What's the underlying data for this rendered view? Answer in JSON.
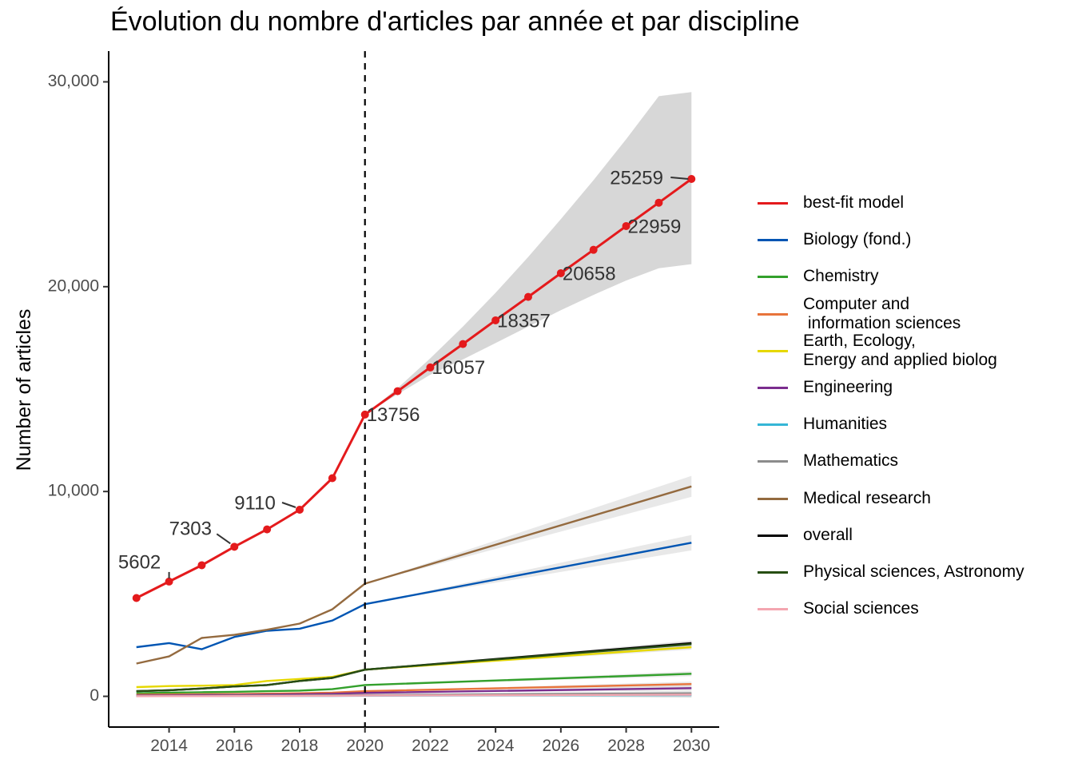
{
  "chart_data": {
    "type": "line",
    "title": "Évolution du nombre d'articles par année et par discipline",
    "xlabel": "",
    "ylabel": "Number of articles",
    "xlim": [
      2012.15,
      2030.85
    ],
    "ylim": [
      -1500,
      31500
    ],
    "x_ticks": [
      2014,
      2016,
      2018,
      2020,
      2022,
      2024,
      2026,
      2028,
      2030
    ],
    "y_ticks": [
      0,
      10000,
      20000,
      30000
    ],
    "y_tick_labels": [
      "0",
      "10,000",
      "20,000",
      "30,000"
    ],
    "vline_x": 2020,
    "grid": false,
    "legend_position": "right",
    "legend_entries": [
      "best-fit model",
      "Biology (fond.)",
      "Chemistry",
      "Computer and\n information sciences",
      "Earth, Ecology,\nEnergy and applied biolog",
      "Engineering",
      "Humanities",
      "Mathematics",
      "Medical research",
      "overall",
      "Physical sciences, Astronomy",
      "Social sciences"
    ],
    "series": [
      {
        "name": "best-fit model",
        "color": "#e41a1c",
        "markers": true,
        "x": [
          2013,
          2014,
          2015,
          2016,
          2017,
          2018,
          2019,
          2020,
          2021,
          2022,
          2023,
          2024,
          2025,
          2026,
          2027,
          2028,
          2029,
          2030
        ],
        "y": [
          4800,
          5602,
          6400,
          7303,
          8150,
          9110,
          10650,
          13756,
          14900,
          16057,
          17200,
          18357,
          19500,
          20658,
          21800,
          22959,
          24100,
          25259
        ],
        "band_upper": [
          null,
          null,
          null,
          null,
          null,
          null,
          null,
          13756,
          15050,
          16500,
          18050,
          19700,
          21450,
          23300,
          25200,
          27200,
          29300,
          29500
        ],
        "band_lower": [
          null,
          null,
          null,
          null,
          null,
          null,
          null,
          13756,
          14750,
          15700,
          16450,
          17250,
          18050,
          18850,
          19600,
          20300,
          20900,
          21100
        ]
      },
      {
        "name": "Biology (fond.)",
        "color": "#0055b3",
        "x": [
          2013,
          2014,
          2015,
          2016,
          2017,
          2018,
          2019,
          2020,
          2030
        ],
        "y": [
          2400,
          2600,
          2300,
          2900,
          3200,
          3300,
          3700,
          4500,
          7500
        ]
      },
      {
        "name": "Chemistry",
        "color": "#33a02c",
        "x": [
          2013,
          2014,
          2015,
          2016,
          2017,
          2018,
          2019,
          2020,
          2030
        ],
        "y": [
          150,
          180,
          200,
          220,
          250,
          280,
          350,
          550,
          1100
        ]
      },
      {
        "name": "Computer and\n information sciences",
        "color": "#e8743b",
        "x": [
          2013,
          2014,
          2015,
          2016,
          2017,
          2018,
          2019,
          2020,
          2030
        ],
        "y": [
          80,
          90,
          100,
          110,
          130,
          150,
          180,
          250,
          600
        ]
      },
      {
        "name": "Earth, Ecology,\nEnergy and applied biolog",
        "color": "#e6d800",
        "x": [
          2013,
          2014,
          2015,
          2016,
          2017,
          2018,
          2019,
          2020,
          2030
        ],
        "y": [
          450,
          500,
          520,
          550,
          750,
          850,
          950,
          1300,
          2400
        ]
      },
      {
        "name": "Engineering",
        "color": "#7b2d8e",
        "x": [
          2013,
          2014,
          2015,
          2016,
          2017,
          2018,
          2019,
          2020,
          2030
        ],
        "y": [
          40,
          50,
          60,
          70,
          80,
          100,
          120,
          170,
          400
        ]
      },
      {
        "name": "Humanities",
        "color": "#35b6d6",
        "x": [
          2013,
          2014,
          2015,
          2016,
          2017,
          2018,
          2019,
          2020,
          2030
        ],
        "y": [
          10,
          12,
          14,
          15,
          17,
          20,
          22,
          30,
          60
        ]
      },
      {
        "name": "Mathematics",
        "color": "#8c8c8c",
        "x": [
          2013,
          2014,
          2015,
          2016,
          2017,
          2018,
          2019,
          2020,
          2030
        ],
        "y": [
          20,
          25,
          30,
          35,
          40,
          45,
          55,
          70,
          150
        ]
      },
      {
        "name": "Medical research",
        "color": "#946a3f",
        "x": [
          2013,
          2014,
          2015,
          2016,
          2017,
          2018,
          2019,
          2020,
          2030
        ],
        "y": [
          1600,
          1950,
          2850,
          3000,
          3250,
          3550,
          4250,
          5500,
          10250
        ]
      },
      {
        "name": "overall",
        "color": "#000000",
        "x": [
          2013,
          2014,
          2015,
          2016,
          2017,
          2018,
          2019,
          2020,
          2030
        ],
        "y": [
          250,
          300,
          380,
          480,
          550,
          750,
          900,
          1300,
          2600
        ]
      },
      {
        "name": "Physical sciences, Astronomy",
        "color": "#274e13",
        "x": [
          2013,
          2014,
          2015,
          2016,
          2017,
          2018,
          2019,
          2020,
          2030
        ],
        "y": [
          250,
          300,
          380,
          480,
          550,
          750,
          900,
          1300,
          2550
        ]
      },
      {
        "name": "Social sciences",
        "color": "#f4a6b0",
        "x": [
          2013,
          2014,
          2015,
          2016,
          2017,
          2018,
          2019,
          2020,
          2030
        ],
        "y": [
          5,
          8,
          10,
          12,
          15,
          20,
          25,
          35,
          80
        ]
      }
    ],
    "annotations": [
      {
        "text": "5602",
        "x": 2014,
        "y": 5602
      },
      {
        "text": "7303",
        "x": 2016,
        "y": 7303
      },
      {
        "text": "9110",
        "x": 2018,
        "y": 9110
      },
      {
        "text": "13756",
        "x": 2020,
        "y": 13756
      },
      {
        "text": "16057",
        "x": 2022,
        "y": 16057
      },
      {
        "text": "18357",
        "x": 2024,
        "y": 18357
      },
      {
        "text": "20658",
        "x": 2026,
        "y": 20658
      },
      {
        "text": "22959",
        "x": 2028,
        "y": 22959
      },
      {
        "text": "25259",
        "x": 2030,
        "y": 25259
      }
    ]
  }
}
